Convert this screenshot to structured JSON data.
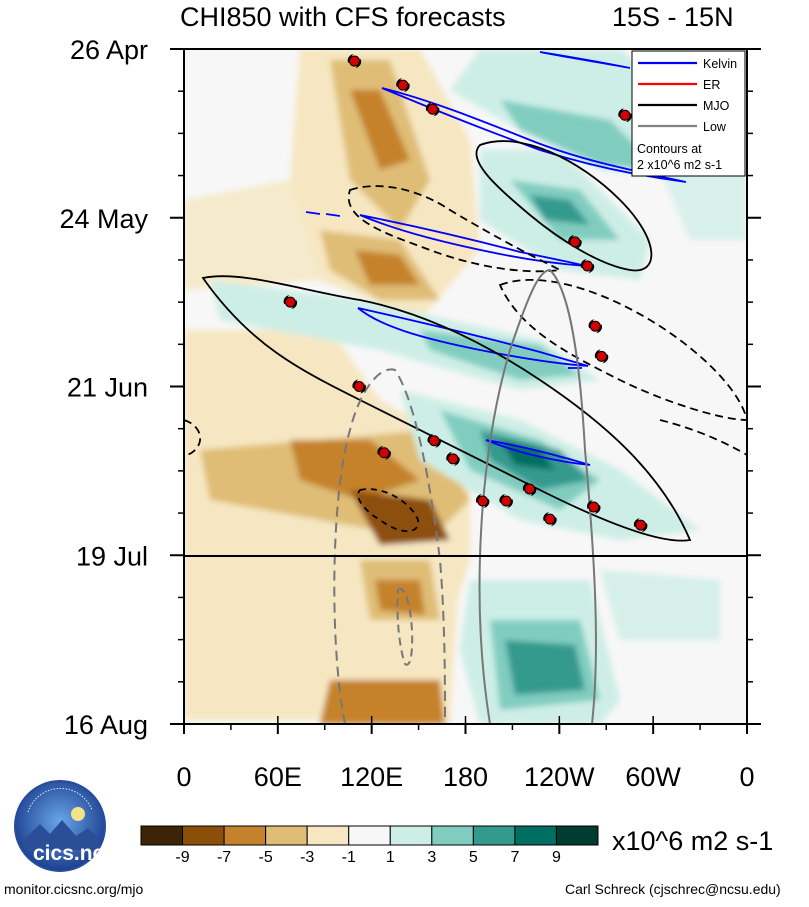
{
  "chart_data": {
    "type": "heatmap",
    "title": "CHI850 with CFS forecasts",
    "lat_range": "15S - 15N",
    "x_ticks": [
      "0",
      "60E",
      "120E",
      "180",
      "120W",
      "60W",
      "0"
    ],
    "x_range": [
      0,
      360
    ],
    "y_ticks": [
      "26 Apr",
      "24 May",
      "21 Jun",
      "19 Jul",
      "16 Aug"
    ],
    "y_range_days": [
      0,
      112
    ],
    "forecast_start": "19 Jul",
    "colorbar": {
      "levels": [
        "-9",
        "-7",
        "-5",
        "-3",
        "-1",
        "1",
        "3",
        "5",
        "7",
        "9"
      ],
      "colors": [
        "#3d2406",
        "#8c4f0a",
        "#c5822c",
        "#dfbd76",
        "#f6e7c2",
        "#f7f7f7",
        "#cdeee6",
        "#80cdc0",
        "#349a8e",
        "#006e60",
        "#003c30"
      ],
      "units": "x10^6 m2 s-1"
    },
    "legend": {
      "entries": [
        {
          "label": "Kelvin",
          "color": "#0000ff"
        },
        {
          "label": "ER",
          "color": "#ff0000"
        },
        {
          "label": "MJO",
          "color": "#000000"
        },
        {
          "label": "Low",
          "color": "#808080"
        }
      ],
      "note_line1": "Contours at",
      "note_line2": "2 x10^6 m2 s-1",
      "position": "top-right"
    },
    "storm_symbols": [
      {
        "lon": 109,
        "day": 2
      },
      {
        "lon": 140,
        "day": 6
      },
      {
        "lon": 159,
        "day": 10
      },
      {
        "lon": 282,
        "day": 11
      },
      {
        "lon": 250,
        "day": 32
      },
      {
        "lon": 258,
        "day": 36
      },
      {
        "lon": 68,
        "day": 42
      },
      {
        "lon": 263,
        "day": 46
      },
      {
        "lon": 267,
        "day": 51
      },
      {
        "lon": 112,
        "day": 56
      },
      {
        "lon": 160,
        "day": 65
      },
      {
        "lon": 128,
        "day": 67
      },
      {
        "lon": 172,
        "day": 68
      },
      {
        "lon": 221,
        "day": 73
      },
      {
        "lon": 191,
        "day": 75
      },
      {
        "lon": 206,
        "day": 75
      },
      {
        "lon": 262,
        "day": 76
      },
      {
        "lon": 234,
        "day": 78
      },
      {
        "lon": 292,
        "day": 79
      }
    ]
  },
  "footer": {
    "source": "monitor.cicsnc.org/mjo",
    "author": "Carl Schreck (cjschrec@ncsu.edu)",
    "logo_text": "cics.nc",
    "logo_ring_text": "Cooperative Institute for Climate and Satellites"
  }
}
